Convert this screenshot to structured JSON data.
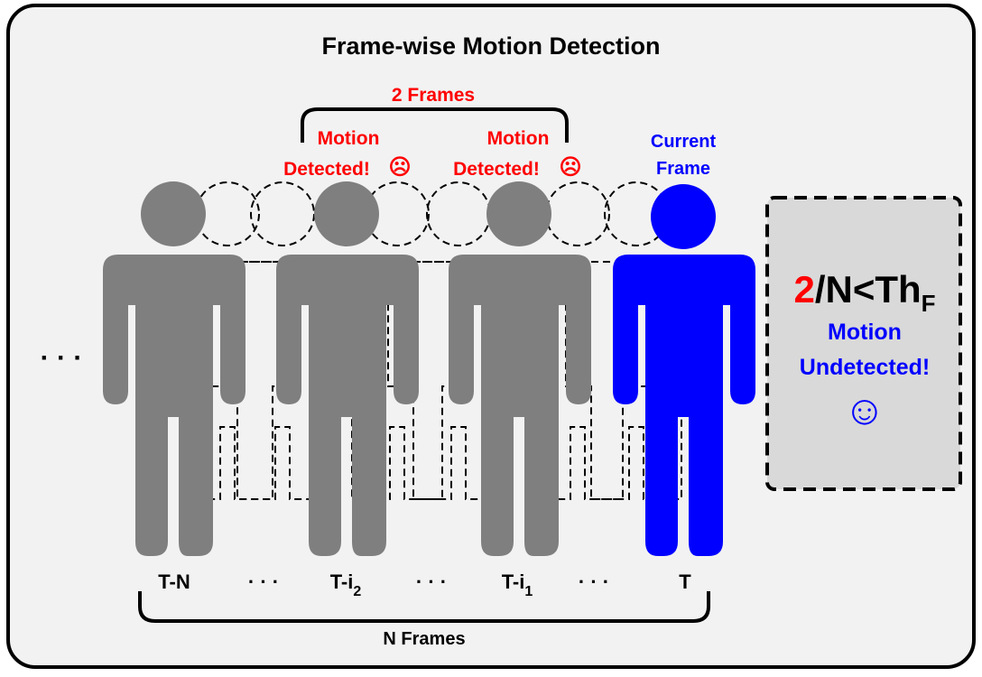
{
  "title": "Frame-wise Motion Detection",
  "brace_top": {
    "label": "2 Frames"
  },
  "brace_bottom": {
    "label": "N Frames"
  },
  "annotations": {
    "motion_1": {
      "line1": "Motion",
      "line2": "Detected!",
      "emoji": "☹"
    },
    "motion_2": {
      "line1": "Motion",
      "line2": "Detected!",
      "emoji": "☹"
    },
    "current": {
      "line1": "Current",
      "line2": "Frame"
    }
  },
  "timeline": {
    "leading_ellipsis": "· · ·",
    "labels": {
      "t_n": "T-N",
      "t_i2_base": "T-i",
      "t_i2_sub": "2",
      "t_i1_base": "T-i",
      "t_i1_sub": "1",
      "t": "T"
    },
    "gap_ellipsis": "· · ·"
  },
  "result_box": {
    "count": "2",
    "formula": "/N<Th",
    "formula_sub": "F",
    "status_line1": "Motion",
    "status_line2": "Undetected!",
    "emoji": "☺"
  },
  "colors": {
    "detected_person": "#7f7f7f",
    "current_person": "#0000ff",
    "alert": "#ff0000",
    "info": "#0000ff",
    "panel": "#f2f2f2",
    "result_box_fill": "#d9d9d9"
  }
}
